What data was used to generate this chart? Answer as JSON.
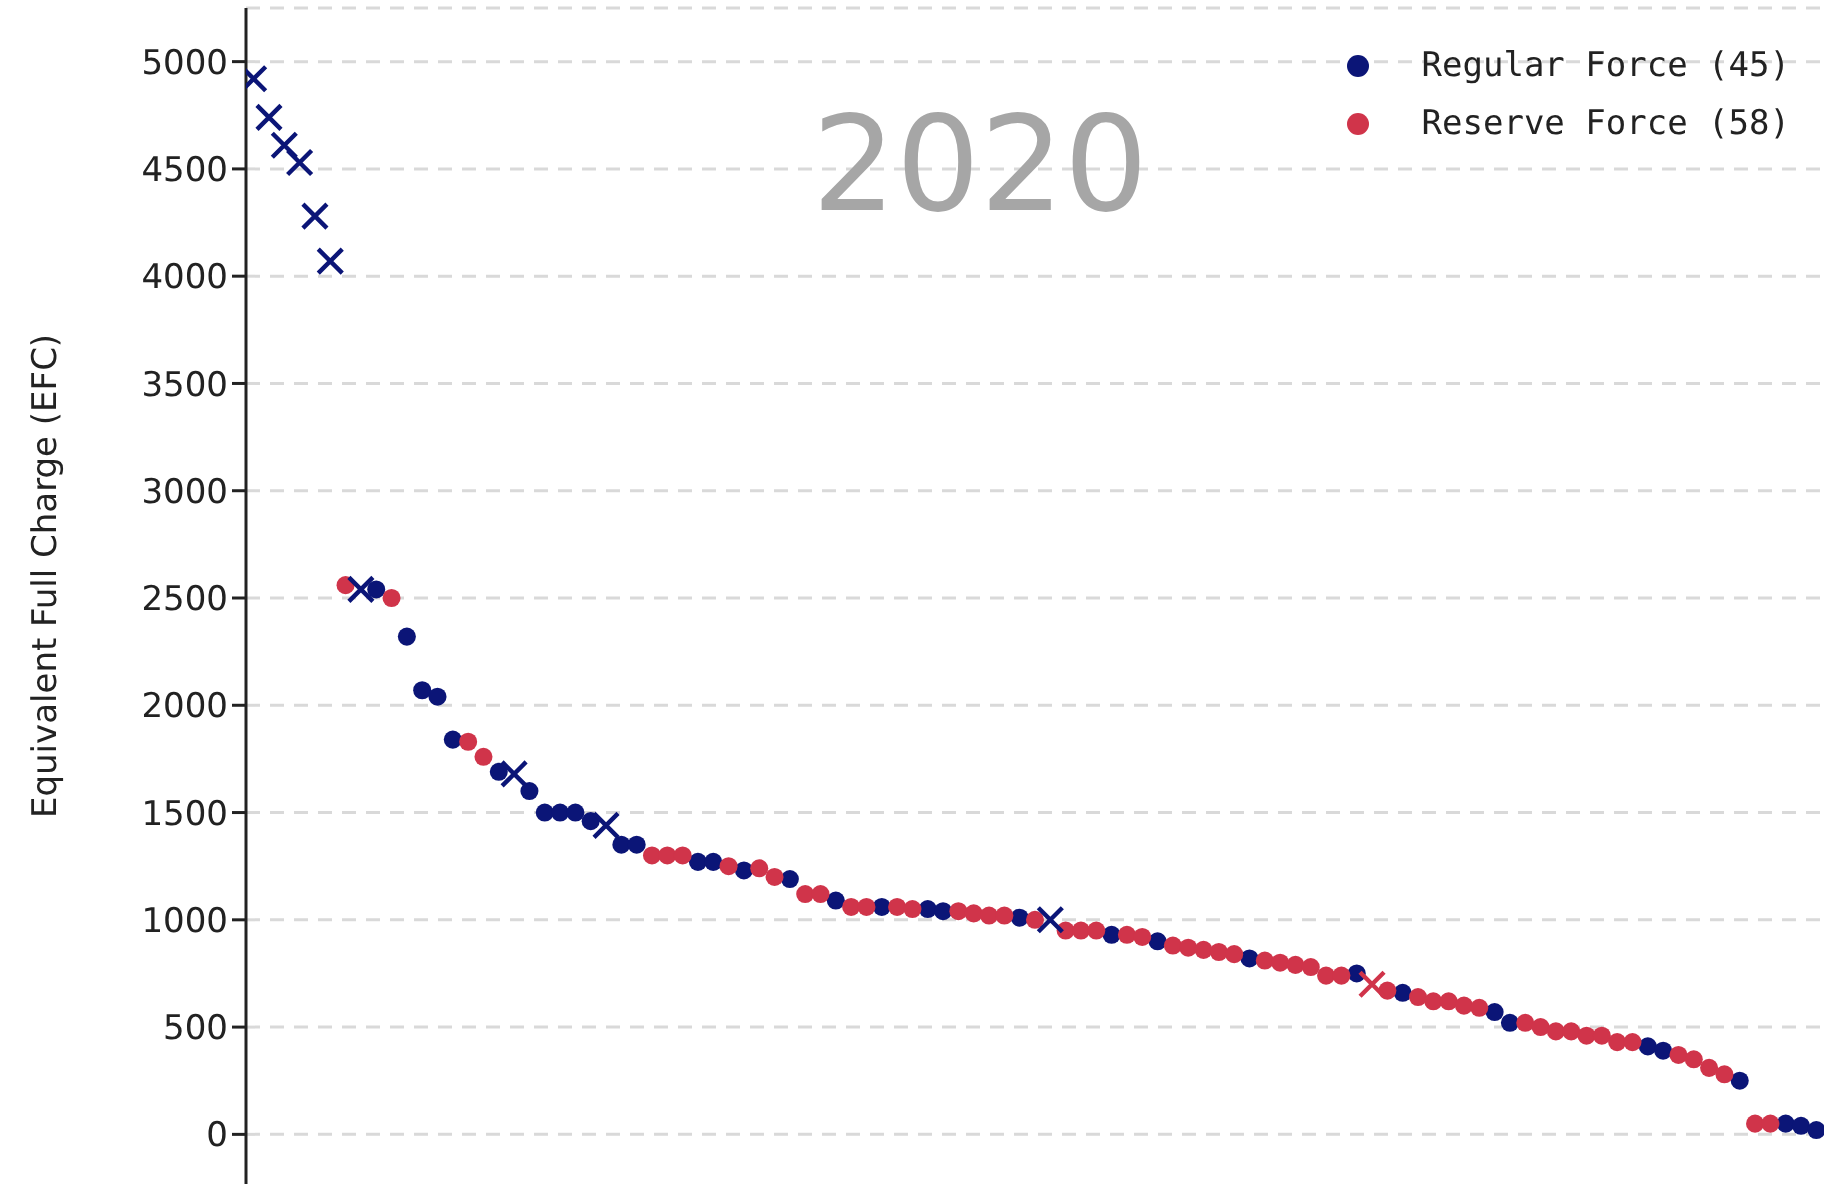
{
  "chart_data": {
    "type": "scatter",
    "title": "2020",
    "ylabel": "Equivalent Full Charge (EFC)",
    "categories": [
      null,
      null,
      null,
      null,
      null,
      null,
      null,
      null,
      null,
      null,
      null,
      null,
      null,
      null,
      null,
      null,
      null,
      null,
      null,
      null,
      null,
      null,
      null,
      null,
      null,
      null,
      null,
      null,
      null,
      null,
      null,
      null,
      null,
      null,
      null,
      null,
      null,
      null,
      null,
      null,
      null,
      null,
      null,
      null,
      null,
      null,
      null,
      null,
      null,
      null,
      null,
      null,
      null,
      null,
      null,
      null,
      null,
      null,
      null,
      null,
      null,
      null,
      null,
      null,
      null,
      null,
      null,
      null,
      null,
      null,
      null,
      null,
      null,
      null,
      null,
      null,
      null,
      null,
      null,
      null,
      null,
      null,
      null,
      null,
      null,
      null,
      null,
      null,
      null,
      null,
      null,
      null,
      null,
      null,
      null,
      null,
      null,
      null,
      null,
      null,
      null,
      null,
      null
    ],
    "series": [
      {
        "name": "Regular Force (45)",
        "color": "#0b1577",
        "marker": "circle",
        "values": [
          null,
          null,
          null,
          null,
          null,
          null,
          null,
          null,
          2540,
          null,
          2320,
          2070,
          2040,
          1840,
          null,
          null,
          1690,
          null,
          1600,
          1500,
          1500,
          1500,
          1460,
          null,
          1350,
          1350,
          null,
          null,
          null,
          1270,
          1270,
          null,
          1230,
          null,
          null,
          1190,
          null,
          null,
          1090,
          null,
          null,
          1060,
          null,
          null,
          1050,
          1040,
          null,
          null,
          null,
          null,
          1010,
          null,
          null,
          null,
          null,
          null,
          930,
          null,
          null,
          900,
          null,
          null,
          null,
          null,
          null,
          820,
          null,
          null,
          null,
          null,
          null,
          null,
          750,
          null,
          null,
          660,
          null,
          null,
          null,
          null,
          null,
          570,
          520,
          null,
          null,
          null,
          null,
          null,
          null,
          null,
          null,
          410,
          390,
          null,
          null,
          null,
          null,
          250,
          null,
          null,
          50,
          40,
          20
        ]
      },
      {
        "name": "Reserve Force (58)",
        "color": "#d0344a",
        "marker": "circle",
        "values": [
          null,
          null,
          null,
          null,
          null,
          null,
          2560,
          null,
          null,
          2500,
          null,
          null,
          null,
          null,
          1830,
          1760,
          null,
          null,
          null,
          null,
          null,
          null,
          null,
          null,
          null,
          null,
          1300,
          1300,
          1300,
          null,
          null,
          1250,
          null,
          1240,
          1200,
          null,
          1120,
          1120,
          null,
          1060,
          1060,
          null,
          1060,
          1050,
          null,
          null,
          1040,
          1030,
          1020,
          1020,
          null,
          1000,
          null,
          950,
          950,
          950,
          null,
          930,
          920,
          null,
          880,
          870,
          860,
          850,
          840,
          null,
          810,
          800,
          790,
          780,
          740,
          740,
          null,
          null,
          670,
          null,
          640,
          620,
          620,
          600,
          590,
          null,
          null,
          520,
          500,
          480,
          480,
          460,
          460,
          430,
          430,
          null,
          null,
          370,
          350,
          310,
          280,
          null,
          50,
          50,
          null,
          null,
          null
        ]
      },
      {
        "color": "#0b1577",
        "marker": "cross",
        "values": [
          4920,
          4740,
          4610,
          4530,
          4280,
          4070,
          null,
          2540,
          null,
          null,
          null,
          null,
          null,
          null,
          null,
          null,
          null,
          1680,
          null,
          null,
          null,
          null,
          null,
          1440,
          null,
          null,
          null,
          null,
          null,
          null,
          null,
          null,
          null,
          null,
          null,
          null,
          null,
          null,
          null,
          null,
          null,
          null,
          null,
          null,
          null,
          null,
          null,
          null,
          null,
          null,
          null,
          null,
          1000,
          null,
          null,
          null,
          null,
          null,
          null,
          null,
          null,
          null,
          null,
          null,
          null,
          null,
          null,
          null,
          null,
          null,
          null,
          null,
          null,
          null,
          null,
          null,
          null,
          null,
          null,
          null,
          null,
          null,
          null,
          null,
          null,
          null,
          null,
          null,
          null,
          null,
          null,
          null,
          null,
          null,
          null,
          null,
          null,
          null,
          null,
          null,
          null,
          null,
          null
        ]
      },
      {
        "color": "#d0344a",
        "marker": "cross",
        "values": [
          null,
          null,
          null,
          null,
          null,
          null,
          null,
          null,
          null,
          null,
          null,
          null,
          null,
          null,
          null,
          null,
          null,
          null,
          null,
          null,
          null,
          null,
          null,
          null,
          null,
          null,
          null,
          null,
          null,
          null,
          null,
          null,
          null,
          null,
          null,
          null,
          null,
          null,
          null,
          null,
          null,
          null,
          null,
          null,
          null,
          null,
          null,
          null,
          null,
          null,
          null,
          null,
          null,
          null,
          null,
          null,
          null,
          null,
          null,
          null,
          null,
          null,
          null,
          null,
          null,
          null,
          null,
          null,
          null,
          null,
          null,
          null,
          null,
          700,
          null,
          null,
          null,
          null,
          null,
          null,
          null,
          null,
          null,
          null,
          null,
          null,
          null,
          null,
          null,
          null,
          null,
          null,
          null,
          null,
          null,
          null,
          null,
          null,
          null,
          null,
          null,
          null,
          null
        ]
      }
    ],
    "ylim": [
      -250,
      5250
    ],
    "yticks": [
      0,
      500,
      1000,
      1500,
      2000,
      2500,
      3000,
      3500,
      4000,
      4500,
      5000
    ],
    "grid": "y",
    "legend": "top right",
    "tick_labels": "y"
  }
}
